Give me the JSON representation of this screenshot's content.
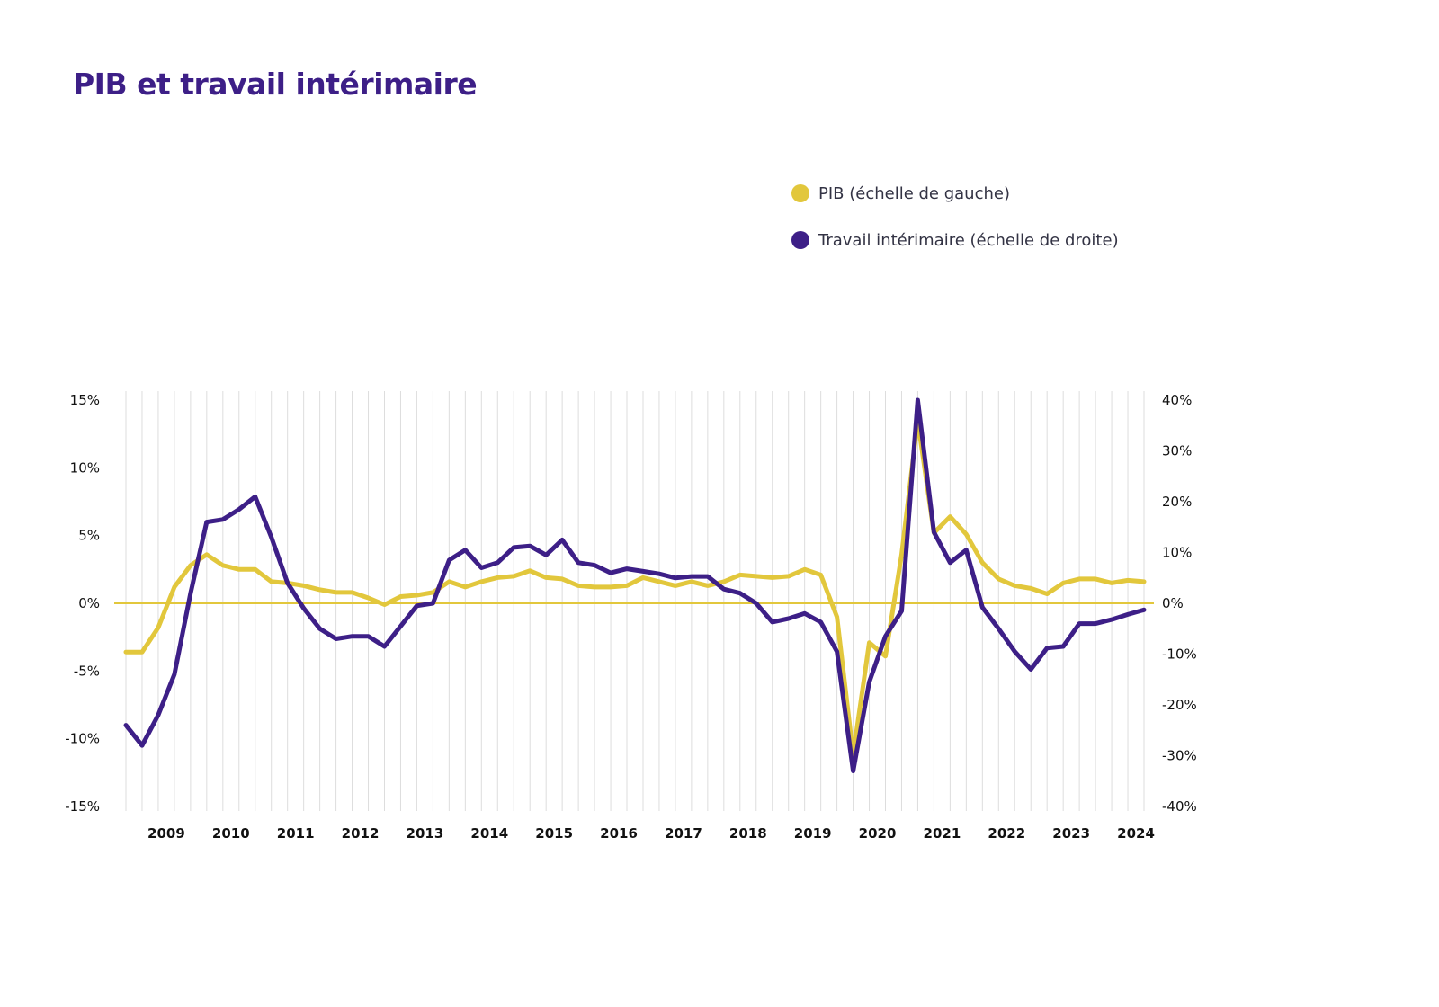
{
  "title": "PIB et travail intérimaire",
  "legend": {
    "items": [
      {
        "label": "PIB (échelle de gauche)",
        "color": "#e2c73c"
      },
      {
        "label": "Travail intérimaire (échelle de droite)",
        "color": "#3d1f87"
      }
    ],
    "placement": "top-right"
  },
  "chart_data": {
    "type": "line",
    "x_axis": {
      "kind": "quarterly",
      "start_year": 2008,
      "start_quarter": 4,
      "tick_labels": [
        "2009",
        "2010",
        "2011",
        "2012",
        "2013",
        "2014",
        "2015",
        "2016",
        "2017",
        "2018",
        "2019",
        "2020",
        "2021",
        "2022",
        "2023",
        "2024"
      ],
      "grid": "vertical-per-quarter"
    },
    "y_left": {
      "range": [
        -15,
        15
      ],
      "ticks": [
        -15,
        -10,
        -5,
        0,
        5,
        10,
        15
      ],
      "tick_labels": [
        "-15%",
        "-10%",
        "-5%",
        "0%",
        "5%",
        "10%",
        "15%"
      ]
    },
    "y_right": {
      "range": [
        -40,
        40
      ],
      "ticks": [
        -40,
        -30,
        -20,
        -10,
        0,
        10,
        20,
        30,
        40
      ],
      "tick_labels": [
        "-40%",
        "-30%",
        "-20%",
        "-10%",
        "0%",
        "10%",
        "20%",
        "30%",
        "40%"
      ]
    },
    "series": [
      {
        "name": "PIB (échelle de gauche)",
        "axis": "left",
        "color": "#e2c73c",
        "values": [
          -3.6,
          -3.6,
          -1.8,
          1.2,
          2.8,
          3.6,
          2.8,
          2.5,
          2.5,
          1.6,
          1.5,
          1.3,
          1.0,
          0.8,
          0.8,
          0.4,
          -0.1,
          0.5,
          0.6,
          0.8,
          1.6,
          1.2,
          1.6,
          1.9,
          2.0,
          2.4,
          1.9,
          1.8,
          1.3,
          1.2,
          1.2,
          1.3,
          1.9,
          1.6,
          1.3,
          1.6,
          1.3,
          1.6,
          2.1,
          2.0,
          1.9,
          2.0,
          2.5,
          2.1,
          -1.0,
          -11.2,
          -2.9,
          -3.9,
          3.6,
          13.5,
          5.2,
          6.4,
          5.1,
          3.0,
          1.8,
          1.3,
          1.1,
          0.7,
          1.5,
          1.8,
          1.8,
          1.5,
          1.7,
          1.6
        ]
      },
      {
        "name": "Travail intérimaire (échelle de droite)",
        "axis": "right",
        "color": "#3d1f87",
        "values": [
          -24,
          -28,
          -22,
          -14,
          2,
          16,
          16.5,
          18.5,
          21,
          13,
          4,
          -1,
          -5,
          -7,
          -6.5,
          -6.5,
          -8.5,
          -4.5,
          -0.5,
          0,
          8.5,
          10.5,
          7,
          8,
          11,
          11.3,
          9.5,
          12.5,
          8,
          7.5,
          6,
          6.8,
          6.3,
          5.8,
          5,
          5.3,
          5.3,
          2.8,
          2,
          0,
          -3.7,
          -3,
          -2,
          -3.7,
          -9.5,
          -33,
          -15.5,
          -6.5,
          -1.5,
          40,
          14,
          8,
          10.5,
          -0.8,
          -5,
          -9.5,
          -13,
          -8.8,
          -8.5,
          -4,
          -4,
          -3.2,
          -2.2,
          -1.3
        ]
      }
    ],
    "zero_line_color": "#e2c73c",
    "grid_color": "#dddddd"
  }
}
